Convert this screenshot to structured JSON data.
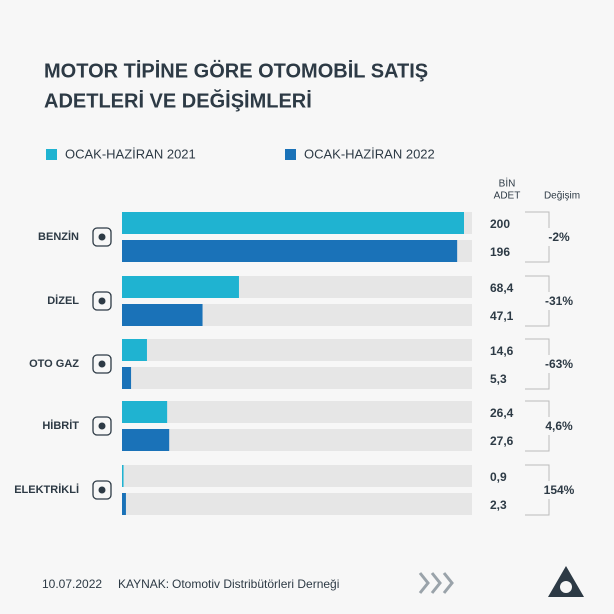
{
  "chart_data": {
    "type": "bar",
    "orientation": "horizontal",
    "title": [
      "MOTOR TİPİNE GÖRE OTOMOBİL SATIŞ",
      "ADETLERİ VE DEĞİŞİMLERİ"
    ],
    "value_header": [
      "BİN",
      "ADET"
    ],
    "change_header": "Değişim",
    "categories": [
      "BENZİN",
      "DİZEL",
      "OTO GAZ",
      "HİBRİT",
      "ELEKTRİKLİ"
    ],
    "series": [
      {
        "name": "OCAK-HAZİRAN 2021",
        "color": "#1fb3d1",
        "values": [
          200,
          68.4,
          14.6,
          26.4,
          0.9
        ],
        "value_labels": [
          "200",
          "68,4",
          "14,6",
          "26,4",
          "0,9"
        ]
      },
      {
        "name": "OCAK-HAZİRAN 2022",
        "color": "#1a72b8",
        "values": [
          196,
          47.1,
          5.3,
          27.6,
          2.3
        ],
        "value_labels": [
          "196",
          "47,1",
          "5,3",
          "27,6",
          "2,3"
        ]
      }
    ],
    "changes": {
      "values": [
        -2,
        -31,
        -63,
        4.6,
        154
      ],
      "value_labels": [
        "-2%",
        "-31%",
        "-63%",
        "4,6%",
        "154%"
      ],
      "colors": {
        "negative": "#c0262d",
        "positive": "#2e7d32"
      }
    },
    "xlim": [
      0,
      200
    ],
    "date": "10.07.2022",
    "source_label": "KAYNAK:",
    "source": "Otomotiv Distribütörleri Derneği"
  }
}
